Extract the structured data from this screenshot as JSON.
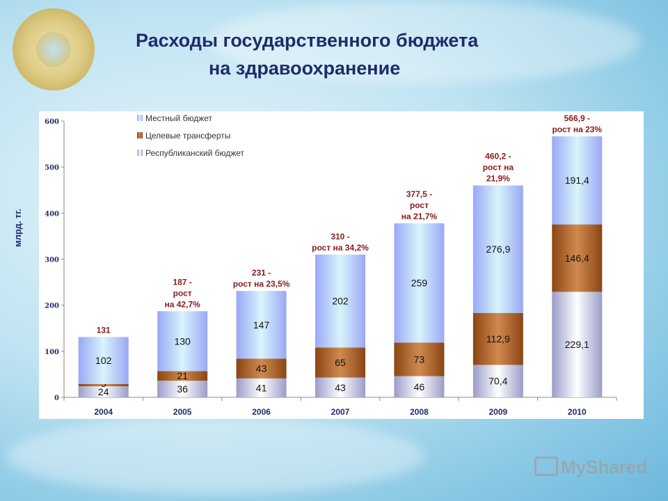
{
  "title": {
    "line1": "Расходы государственного бюджета",
    "line2": "на здравоохранение"
  },
  "watermark": "MyShared",
  "chart_data": {
    "type": "bar",
    "stacked": true,
    "title": "Расходы государственного бюджета на здравоохранение",
    "ylabel": "млрд. тг.",
    "xlabel": "",
    "ylim": [
      0,
      600
    ],
    "yticks": [
      0,
      100,
      200,
      300,
      400,
      500,
      600
    ],
    "grid": false,
    "legend_position": "top-left",
    "categories": [
      "2004",
      "2005",
      "2006",
      "2007",
      "2008",
      "2009",
      "2010"
    ],
    "series": [
      {
        "name": "Республиканский бюджет",
        "color": "#c8c8dc",
        "values": [
          24,
          36,
          41,
          43,
          46,
          70.4,
          229.1
        ],
        "labels": [
          "24",
          "36",
          "41",
          "43",
          "46",
          "70,4",
          "229,1"
        ]
      },
      {
        "name": "Целевые трансферты",
        "color": "#a0522d",
        "values": [
          5,
          21,
          43,
          65,
          73,
          112.9,
          146.4
        ],
        "labels": [
          "5",
          "21",
          "43",
          "65",
          "73",
          "112,9",
          "146,4"
        ]
      },
      {
        "name": "Местный бюджет",
        "color": "#a8b8f8",
        "values": [
          102,
          130,
          147,
          202,
          259,
          276.9,
          191.4
        ],
        "labels": [
          "102",
          "130",
          "147",
          "202",
          "259",
          "276,9",
          "191,4"
        ]
      }
    ],
    "totals_annotations": [
      [
        "131"
      ],
      [
        "187 -",
        "рост",
        "на 42,7%"
      ],
      [
        "231 -",
        "рост на 23,5%"
      ],
      [
        "310 -",
        "рост на 34,2%"
      ],
      [
        "377,5 -",
        "рост",
        "на 21,7%"
      ],
      [
        "460,2 -",
        "рост на",
        "21,9%"
      ],
      [
        "566,9 -",
        "рост на 23%"
      ]
    ],
    "totals": [
      131,
      187,
      231,
      310,
      377.5,
      460.2,
      566.9
    ],
    "annotation_color": "#8b1a1a"
  }
}
